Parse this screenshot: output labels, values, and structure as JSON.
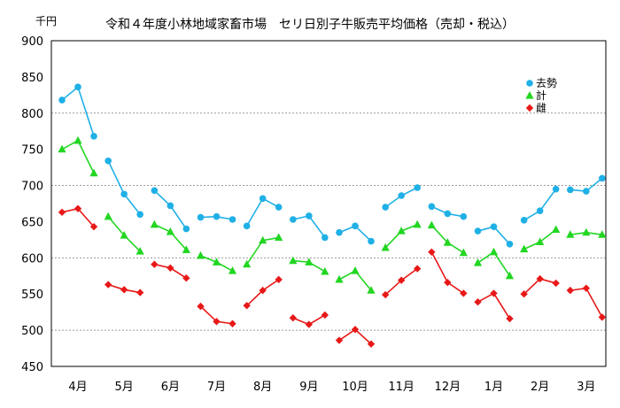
{
  "chart_data": {
    "type": "line",
    "title": "令和４年度小林地域家畜市場　セリ日別子牛販売平均価格（売却・税込）",
    "ylabel": "千円",
    "xlabel": "",
    "ylim": [
      450,
      900
    ],
    "yticks": [
      450,
      500,
      550,
      600,
      650,
      700,
      750,
      800,
      850,
      900
    ],
    "grid": "horizontal dashed at 500, 600, 700, 800",
    "legend_position": "top-right",
    "months": [
      "4月",
      "5月",
      "6月",
      "7月",
      "8月",
      "9月",
      "10月",
      "11月",
      "12月",
      "1月",
      "2月",
      "3月"
    ],
    "series": [
      {
        "name": "去勢",
        "color": "#1fb0e6",
        "marker": "circle",
        "values": [
          [
            818,
            836,
            768
          ],
          [
            734,
            688,
            660
          ],
          [
            693,
            672,
            640
          ],
          [
            656,
            657,
            653
          ],
          [
            644,
            682,
            670
          ],
          [
            653,
            658,
            628
          ],
          [
            635,
            644,
            623
          ],
          [
            670,
            686,
            697
          ],
          [
            671,
            661,
            657
          ],
          [
            637,
            643,
            619
          ],
          [
            652,
            665,
            695
          ],
          [
            694,
            692,
            710
          ]
        ]
      },
      {
        "name": "計",
        "color": "#22d622",
        "marker": "triangle",
        "values": [
          [
            750,
            762,
            717
          ],
          [
            657,
            631,
            609
          ],
          [
            646,
            636,
            611
          ],
          [
            603,
            594,
            582
          ],
          [
            591,
            624,
            628
          ],
          [
            596,
            594,
            581
          ],
          [
            570,
            582,
            555
          ],
          [
            614,
            637,
            646
          ],
          [
            645,
            621,
            607
          ],
          [
            593,
            608,
            575
          ],
          [
            612,
            622,
            639
          ],
          [
            632,
            635,
            632
          ]
        ]
      },
      {
        "name": "雌",
        "color": "#e81818",
        "marker": "diamond",
        "values": [
          [
            663,
            668,
            643
          ],
          [
            563,
            556,
            552
          ],
          [
            591,
            586,
            572
          ],
          [
            533,
            512,
            509
          ],
          [
            534,
            555,
            570
          ],
          [
            517,
            508,
            521
          ],
          [
            486,
            501,
            481
          ],
          [
            549,
            569,
            585
          ],
          [
            608,
            566,
            551
          ],
          [
            539,
            551,
            516
          ],
          [
            550,
            571,
            565
          ],
          [
            555,
            558,
            518
          ]
        ]
      }
    ]
  }
}
